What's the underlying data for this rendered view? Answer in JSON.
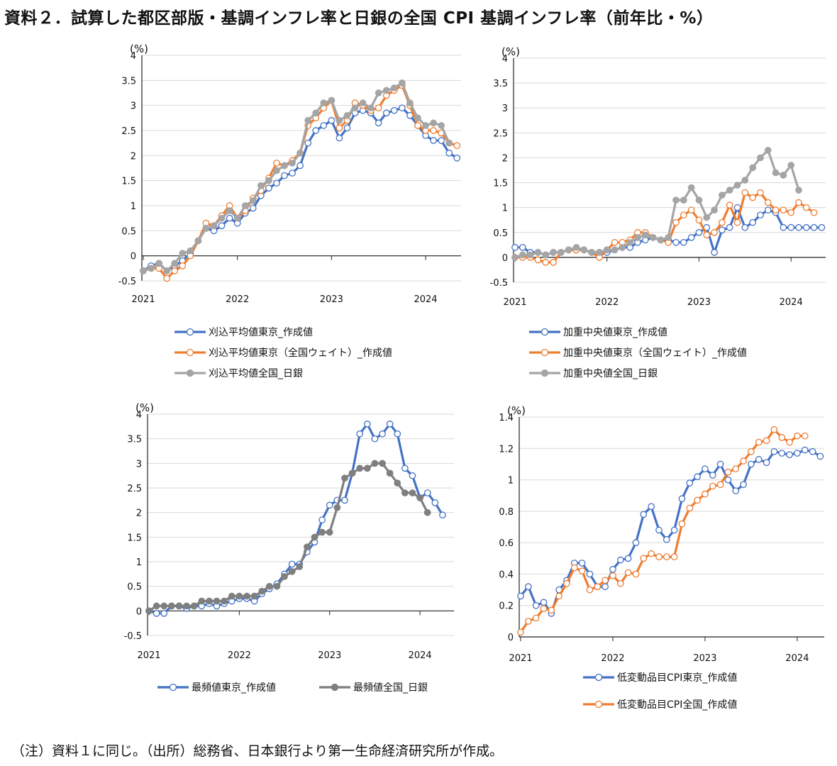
{
  "title": "資料２．試算した都区部版・基調インフレ率と日銀の全国 CPI 基調インフレ率（前年比・%）",
  "note": "（注）資料１に同じ。（出所）総務省、日本銀行より第一生命経済研究所が作成。",
  "colors": {
    "blue": "#4472C4",
    "orange": "#ED7D31",
    "gray": "#A5A5A5",
    "darkgray": "#7F7F7F"
  },
  "chart_data": [
    {
      "type": "line",
      "title": "",
      "unit_label": "(%)",
      "ylim": [
        -0.5,
        4
      ],
      "yticks": [
        -0.5,
        0,
        0.5,
        1,
        1.5,
        2,
        2.5,
        3,
        3.5,
        4
      ],
      "ytick_labels": [
        "-0.5",
        "0",
        "0.5",
        "1",
        "1.5",
        "2",
        "2.5",
        "3",
        "3.5",
        "4"
      ],
      "x_start": "2021-01",
      "xtick_labels": [
        "2021",
        "2022",
        "2023",
        "2024"
      ],
      "series": [
        {
          "name": "刈込平均値東京_作成値",
          "color": "#4472C4",
          "marker": "open",
          "values": [
            -0.3,
            -0.2,
            -0.15,
            -0.3,
            -0.2,
            -0.1,
            0.05,
            0.3,
            0.55,
            0.5,
            0.6,
            0.75,
            0.65,
            0.85,
            0.95,
            1.2,
            1.35,
            1.45,
            1.6,
            1.65,
            1.8,
            2.25,
            2.5,
            2.6,
            2.7,
            2.35,
            2.55,
            2.85,
            2.9,
            2.85,
            2.65,
            2.85,
            2.9,
            2.95,
            2.8,
            2.6,
            2.4,
            2.3,
            2.3,
            2.05,
            1.95
          ]
        },
        {
          "name": "刈込平均値東京（全国ウェイト）_作成値",
          "color": "#ED7D31",
          "marker": "open",
          "values": [
            -0.3,
            -0.25,
            -0.25,
            -0.45,
            -0.3,
            -0.2,
            0.0,
            0.3,
            0.65,
            0.6,
            0.8,
            1.0,
            0.75,
            0.9,
            1.15,
            1.3,
            1.55,
            1.85,
            1.8,
            1.9,
            2.05,
            2.6,
            2.75,
            2.95,
            3.1,
            2.55,
            2.7,
            3.05,
            3.0,
            2.9,
            2.95,
            3.2,
            3.3,
            3.4,
            3.0,
            2.6,
            2.5,
            2.5,
            2.45,
            2.25,
            2.2
          ]
        },
        {
          "name": "刈込平均値全国_日銀",
          "color": "#A5A5A5",
          "marker": "filled",
          "values": [
            -0.3,
            -0.25,
            -0.15,
            -0.3,
            -0.15,
            0.05,
            0.1,
            0.3,
            0.55,
            0.6,
            0.75,
            0.9,
            0.75,
            1.0,
            1.1,
            1.4,
            1.5,
            1.7,
            1.8,
            1.85,
            2.05,
            2.7,
            2.85,
            3.05,
            3.1,
            2.7,
            2.8,
            2.95,
            3.05,
            2.95,
            3.25,
            3.3,
            3.35,
            3.45,
            3.05,
            2.75,
            2.6,
            2.65,
            2.6,
            2.25,
            null
          ]
        }
      ]
    },
    {
      "type": "line",
      "title": "",
      "unit_label": "(%)",
      "ylim": [
        -0.5,
        4
      ],
      "yticks": [
        -0.5,
        0,
        0.5,
        1,
        1.5,
        2,
        2.5,
        3,
        3.5,
        4
      ],
      "ytick_labels": [
        "-0.5",
        "0",
        "0.5",
        "1",
        "1.5",
        "2",
        "2.5",
        "3",
        "3.5",
        "4"
      ],
      "x_start": "2021-01",
      "xtick_labels": [
        "2021",
        "2022",
        "2023",
        "2024"
      ],
      "series": [
        {
          "name": "加重中央値東京_作成値",
          "color": "#4472C4",
          "marker": "open",
          "values": [
            0.2,
            0.2,
            0.1,
            0.1,
            0.05,
            0.1,
            0.1,
            0.15,
            0.15,
            0.15,
            0.1,
            0.1,
            0.1,
            0.15,
            0.2,
            0.2,
            0.3,
            0.35,
            0.4,
            0.35,
            0.35,
            0.3,
            0.3,
            0.4,
            0.5,
            0.6,
            0.1,
            0.55,
            0.6,
            1.0,
            0.6,
            0.7,
            0.85,
            0.95,
            0.9,
            0.6,
            0.6,
            0.6,
            0.6,
            0.6,
            0.6
          ]
        },
        {
          "name": "加重中央値東京（全国ウェイト）_作成値",
          "color": "#ED7D31",
          "marker": "open",
          "values": [
            0.0,
            0.0,
            0.0,
            -0.05,
            -0.1,
            -0.1,
            0.1,
            0.15,
            0.15,
            0.15,
            0.1,
            0.0,
            0.15,
            0.3,
            0.3,
            0.35,
            0.5,
            0.5,
            0.4,
            0.35,
            0.3,
            0.7,
            0.85,
            0.95,
            0.75,
            0.45,
            0.5,
            0.7,
            1.05,
            0.7,
            1.3,
            1.2,
            1.3,
            1.1,
            0.95,
            0.95,
            0.9,
            1.1,
            1.0,
            0.9,
            null
          ]
        },
        {
          "name": "加重中央値全国_日銀",
          "color": "#A5A5A5",
          "marker": "filled",
          "values": [
            0.0,
            0.05,
            0.05,
            0.1,
            0.05,
            0.1,
            0.1,
            0.15,
            0.2,
            0.15,
            0.1,
            0.1,
            0.15,
            0.15,
            0.2,
            0.3,
            0.4,
            0.45,
            0.4,
            0.35,
            0.4,
            1.15,
            1.15,
            1.4,
            1.15,
            0.8,
            0.95,
            1.25,
            1.35,
            1.45,
            1.55,
            1.8,
            2.0,
            2.15,
            1.7,
            1.65,
            1.85,
            1.35,
            null,
            null,
            null
          ]
        }
      ]
    },
    {
      "type": "line",
      "title": "",
      "unit_label": "(%)",
      "ylim": [
        -0.5,
        4
      ],
      "yticks": [
        -0.5,
        0,
        0.5,
        1,
        1.5,
        2,
        2.5,
        3,
        3.5,
        4
      ],
      "ytick_labels": [
        "-0.5",
        "0",
        "0.5",
        "1",
        "1.5",
        "2",
        "2.5",
        "3",
        "3.5",
        "4"
      ],
      "x_start": "2021-01",
      "xtick_labels": [
        "2021",
        "2022",
        "2023",
        "2024"
      ],
      "series": [
        {
          "name": "最頻値東京_作成値",
          "color": "#4472C4",
          "marker": "open",
          "values": [
            0.0,
            -0.05,
            -0.05,
            0.1,
            0.1,
            0.05,
            0.1,
            0.1,
            0.15,
            0.1,
            0.15,
            0.2,
            0.25,
            0.25,
            0.2,
            0.35,
            0.45,
            0.55,
            0.75,
            0.95,
            0.95,
            1.2,
            1.4,
            1.85,
            2.15,
            2.25,
            2.25,
            2.8,
            3.6,
            3.8,
            3.5,
            3.6,
            3.8,
            3.6,
            2.9,
            2.75,
            2.3,
            2.4,
            2.2,
            1.95,
            null
          ]
        },
        {
          "name": "最頻値全国_日銀",
          "color": "#7F7F7F",
          "marker": "filled",
          "values": [
            0.0,
            0.1,
            0.1,
            0.1,
            0.1,
            0.1,
            0.1,
            0.2,
            0.2,
            0.2,
            0.2,
            0.3,
            0.3,
            0.3,
            0.3,
            0.4,
            0.5,
            0.5,
            0.7,
            0.8,
            0.9,
            1.3,
            1.5,
            1.6,
            1.6,
            2.1,
            2.7,
            2.8,
            2.9,
            2.9,
            3.0,
            3.0,
            2.8,
            2.6,
            2.4,
            2.4,
            2.3,
            2.0,
            null,
            null,
            null
          ]
        }
      ]
    },
    {
      "type": "line",
      "title": "",
      "unit_label": "(%)",
      "ylim": [
        0,
        1.4
      ],
      "yticks": [
        0,
        0.2,
        0.4,
        0.6,
        0.8,
        1,
        1.2,
        1.4
      ],
      "ytick_labels": [
        "0",
        "0.2",
        "0.4",
        "0.6",
        "0.8",
        "1",
        "1.2",
        "1.4"
      ],
      "x_start": "2021-01",
      "xtick_labels": [
        "2021",
        "2022",
        "2023",
        "2024"
      ],
      "series": [
        {
          "name": "低変動品目CPI東京_作成値",
          "color": "#4472C4",
          "marker": "open",
          "values": [
            0.26,
            0.32,
            0.2,
            0.22,
            0.15,
            0.3,
            0.36,
            0.47,
            0.47,
            0.4,
            0.32,
            0.32,
            0.43,
            0.49,
            0.5,
            0.6,
            0.78,
            0.83,
            0.68,
            0.62,
            0.68,
            0.88,
            0.98,
            1.02,
            1.07,
            1.03,
            1.1,
            1.0,
            0.93,
            0.97,
            1.1,
            1.13,
            1.11,
            1.18,
            1.17,
            1.16,
            1.17,
            1.19,
            1.18,
            1.15
          ]
        },
        {
          "name": "低変動品目CPI全国_作成値",
          "color": "#ED7D31",
          "marker": "open",
          "values": [
            0.03,
            0.1,
            0.12,
            0.18,
            0.17,
            0.26,
            0.34,
            0.44,
            0.42,
            0.3,
            0.32,
            0.36,
            0.39,
            0.34,
            0.41,
            0.4,
            0.5,
            0.53,
            0.51,
            0.51,
            0.51,
            0.72,
            0.82,
            0.87,
            0.91,
            0.96,
            0.97,
            1.05,
            1.07,
            1.12,
            1.18,
            1.24,
            1.25,
            1.32,
            1.27,
            1.24,
            1.28,
            1.28,
            null,
            null
          ]
        }
      ]
    }
  ]
}
